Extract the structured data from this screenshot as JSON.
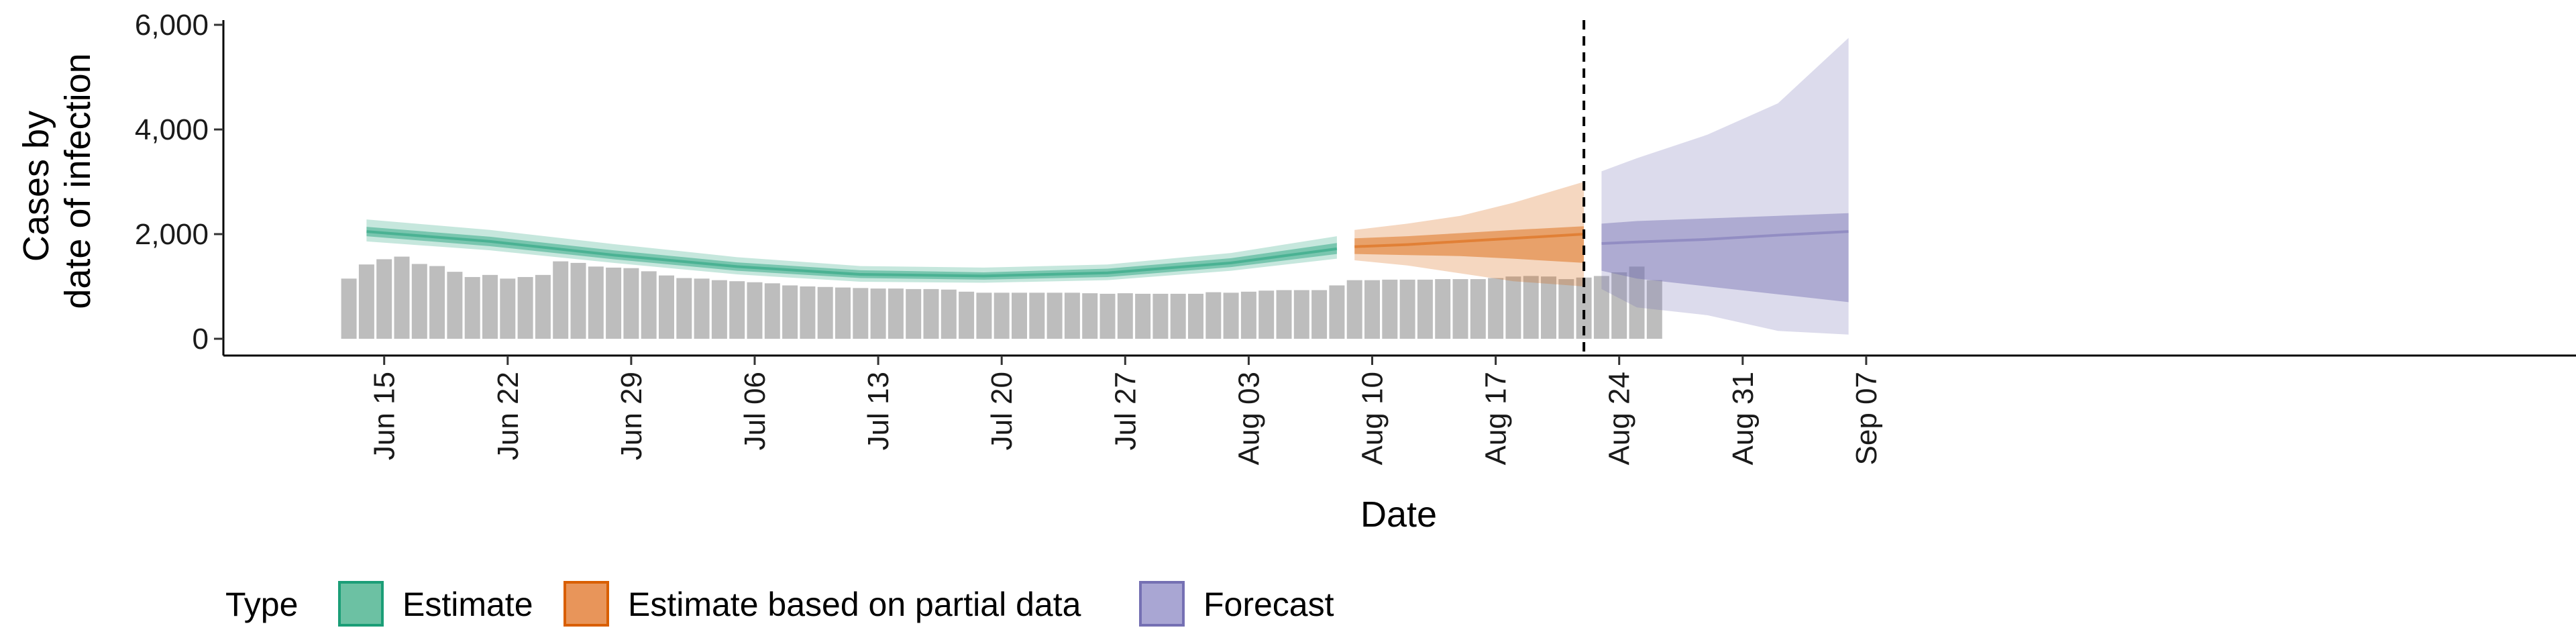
{
  "chart_data": {
    "type": "bar",
    "xlabel": "Date",
    "ylabel_lines": [
      "Cases by",
      "date of infection"
    ],
    "ylim": [
      0,
      6000
    ],
    "yticks": [
      0,
      2000,
      4000,
      6000
    ],
    "ytick_labels": [
      "0",
      "2,000",
      "4,000",
      "6,000"
    ],
    "x_start_date": "2020-06-06",
    "xlim_days": [
      0,
      95
    ],
    "xticks_days": [
      9,
      16,
      23,
      30,
      37,
      44,
      51,
      58,
      65,
      72,
      79,
      86,
      93
    ],
    "xtick_labels": [
      "Jun 15",
      "Jun 22",
      "Jun 29",
      "Jul 06",
      "Jul 13",
      "Jul 20",
      "Jul 27",
      "Aug 03",
      "Aug 10",
      "Aug 17",
      "Aug 24",
      "Aug 31",
      "Sep 07"
    ],
    "reported_cases": {
      "start_day": 7,
      "values": [
        1150,
        1420,
        1520,
        1570,
        1430,
        1390,
        1280,
        1180,
        1220,
        1150,
        1180,
        1220,
        1480,
        1450,
        1380,
        1360,
        1350,
        1290,
        1210,
        1160,
        1150,
        1120,
        1100,
        1080,
        1060,
        1020,
        1000,
        990,
        980,
        970,
        960,
        960,
        950,
        950,
        940,
        900,
        880,
        880,
        880,
        880,
        880,
        880,
        870,
        860,
        870,
        860,
        860,
        860,
        860,
        890,
        880,
        900,
        920,
        930,
        930,
        930,
        1020,
        1120,
        1120,
        1130,
        1130,
        1130,
        1140,
        1140,
        1140,
        1160,
        1190,
        1200,
        1190,
        1140,
        1170,
        1200,
        1270,
        1380,
        1120
      ]
    },
    "vline_day": 77,
    "series": [
      {
        "name": "Estimate",
        "color": "#1b9e77",
        "days": [
          8,
          15,
          22,
          29,
          36,
          43,
          50,
          57,
          63
        ],
        "median": [
          2050,
          1860,
          1600,
          1380,
          1230,
          1200,
          1260,
          1450,
          1720
        ],
        "inner_lo": [
          1960,
          1770,
          1520,
          1300,
          1160,
          1130,
          1180,
          1370,
          1620
        ],
        "inner_hi": [
          2140,
          1950,
          1690,
          1460,
          1310,
          1270,
          1340,
          1540,
          1830
        ],
        "outer_lo": [
          1860,
          1690,
          1450,
          1230,
          1090,
          1070,
          1120,
          1300,
          1530
        ],
        "outer_hi": [
          2280,
          2080,
          1810,
          1560,
          1390,
          1360,
          1420,
          1640,
          1960
        ]
      },
      {
        "name": "Estimate based on partial data",
        "color": "#d95f02",
        "days": [
          64,
          67,
          70,
          73,
          77
        ],
        "median": [
          1760,
          1800,
          1860,
          1920,
          2000
        ],
        "inner_lo": [
          1620,
          1600,
          1580,
          1530,
          1450
        ],
        "inner_hi": [
          1920,
          1960,
          2020,
          2080,
          2150
        ],
        "outer_lo": [
          1500,
          1400,
          1250,
          1100,
          1000
        ],
        "outer_hi": [
          2080,
          2200,
          2350,
          2600,
          3000
        ]
      },
      {
        "name": "Forecast",
        "color": "#7570b3",
        "days": [
          78,
          80,
          84,
          88,
          92
        ],
        "median": [
          1820,
          1850,
          1900,
          1980,
          2050
        ],
        "inner_lo": [
          1300,
          1150,
          1000,
          850,
          700
        ],
        "inner_hi": [
          2200,
          2250,
          2300,
          2350,
          2400
        ],
        "outer_lo": [
          950,
          600,
          450,
          150,
          80
        ],
        "outer_hi": [
          3200,
          3450,
          3900,
          4500,
          5750
        ]
      }
    ],
    "legend": {
      "title": "Type",
      "position": "bottom",
      "items": [
        "Estimate",
        "Estimate based on partial data",
        "Forecast"
      ]
    }
  }
}
